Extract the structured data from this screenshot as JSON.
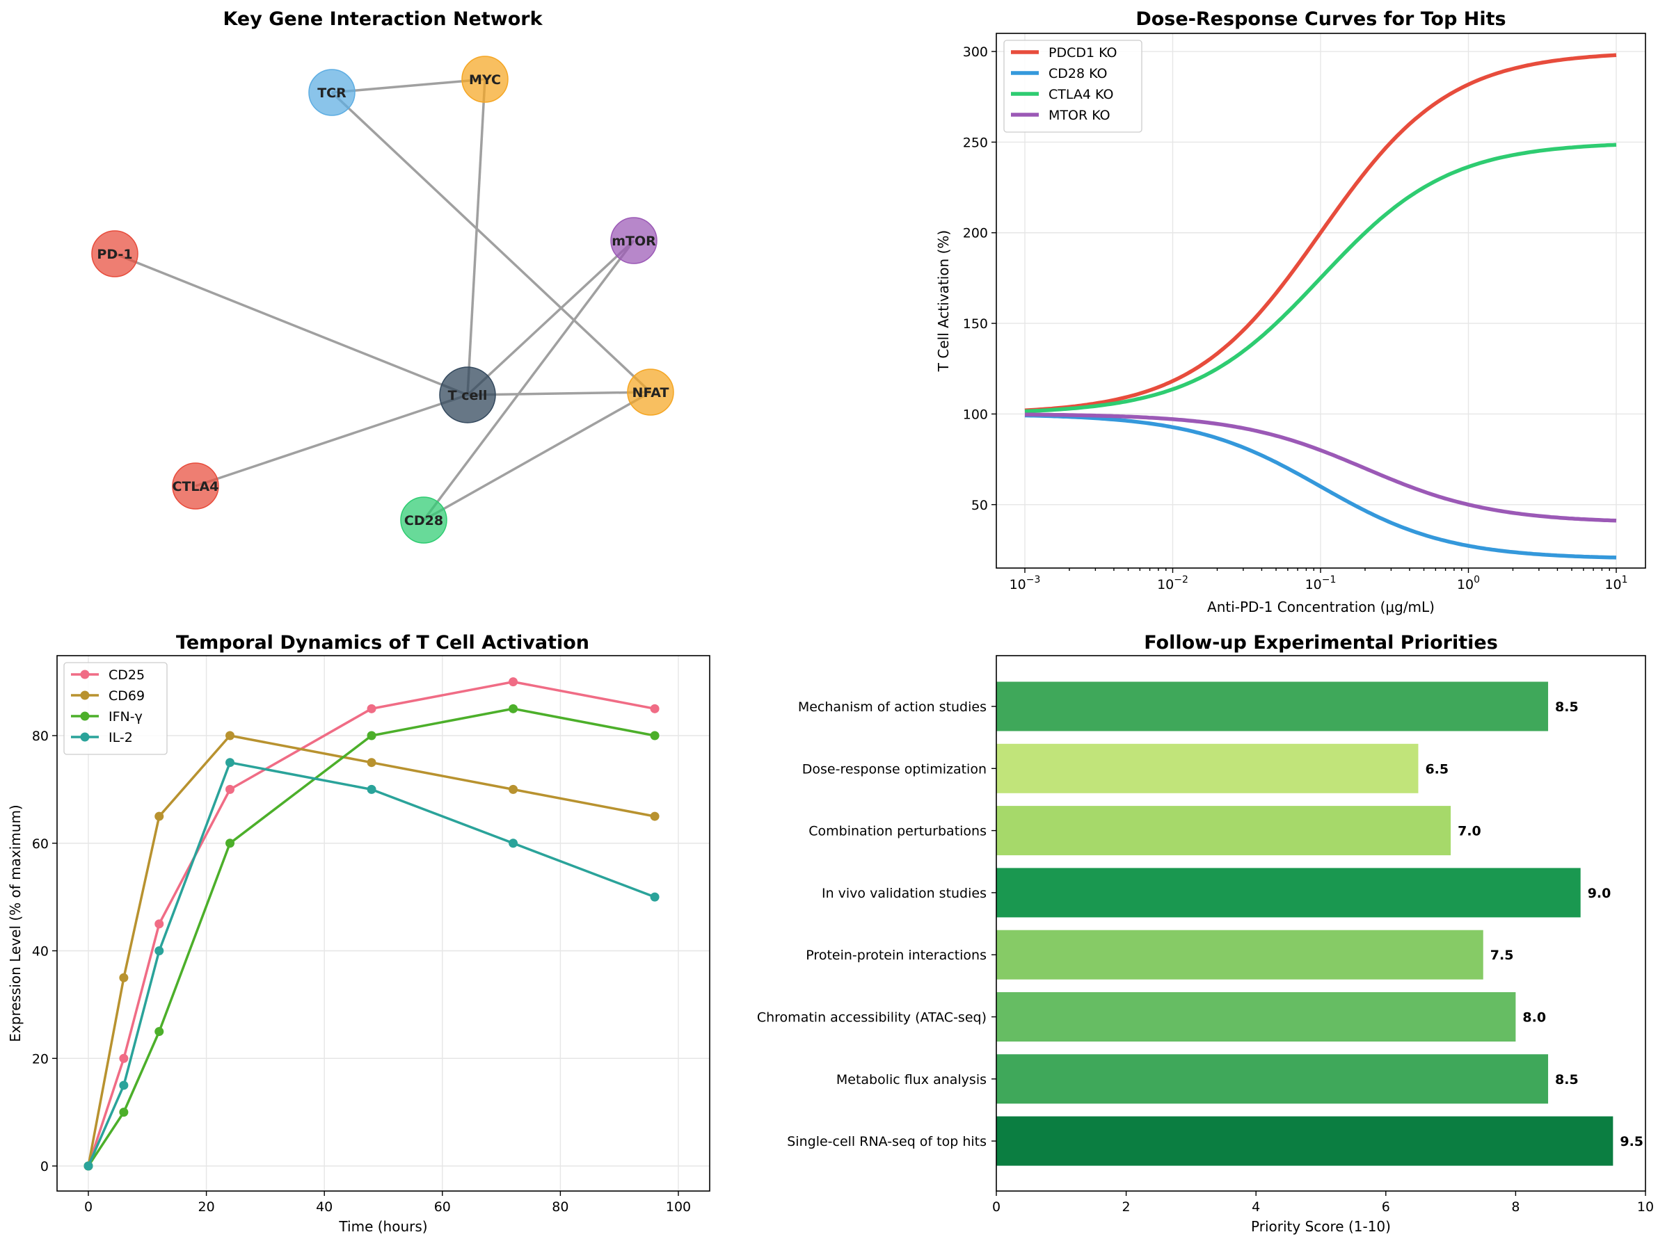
{
  "chart_data": [
    {
      "type": "network",
      "title": "Key Gene Interaction Network",
      "nodes": [
        {
          "id": "TCR",
          "color": "#5dade2",
          "central": false
        },
        {
          "id": "MYC",
          "color": "#f5a623",
          "central": false
        },
        {
          "id": "PD-1",
          "color": "#e74c3c",
          "central": false
        },
        {
          "id": "mTOR",
          "color": "#9b59b6",
          "central": false
        },
        {
          "id": "T cell",
          "color": "#34495e",
          "central": true
        },
        {
          "id": "NFAT",
          "color": "#f5a623",
          "central": false
        },
        {
          "id": "CTLA4",
          "color": "#e74c3c",
          "central": false
        },
        {
          "id": "CD28",
          "color": "#2ecc71",
          "central": false
        }
      ],
      "edges": [
        [
          "TCR",
          "MYC"
        ],
        [
          "MYC",
          "T cell"
        ],
        [
          "TCR",
          "NFAT"
        ],
        [
          "PD-1",
          "T cell"
        ],
        [
          "mTOR",
          "T cell"
        ],
        [
          "mTOR",
          "CD28"
        ],
        [
          "T cell",
          "NFAT"
        ],
        [
          "T cell",
          "CTLA4"
        ],
        [
          "NFAT",
          "CD28"
        ]
      ]
    },
    {
      "type": "line",
      "title": "Dose-Response Curves for Top Hits",
      "xlabel": "Anti-PD-1 Concentration (μg/mL)",
      "ylabel": "T Cell Activation (%)",
      "xscale": "log",
      "xlim": [
        0.001,
        10
      ],
      "ylim": [
        15,
        310
      ],
      "xticks": [
        0.001,
        0.01,
        0.1,
        1,
        10
      ],
      "xtick_exponents": [
        "−3",
        "−2",
        "−1",
        "0",
        "1"
      ],
      "yticks": [
        50,
        100,
        150,
        200,
        250,
        300
      ],
      "legend": "top-left",
      "grid": true,
      "series": [
        {
          "name": "PDCD1 KO",
          "color": "#e74c3c",
          "start": 100,
          "end": 300,
          "ec50": 0.1
        },
        {
          "name": "CD28 KO",
          "color": "#3498db",
          "start": 100,
          "end": 20,
          "ec50": 0.1
        },
        {
          "name": "CTLA4 KO",
          "color": "#2ecc71",
          "start": 100,
          "end": 250,
          "ec50": 0.1
        },
        {
          "name": "MTOR KO",
          "color": "#9b59b6",
          "start": 100,
          "end": 40,
          "ec50": 0.2
        }
      ]
    },
    {
      "type": "line",
      "title": "Temporal Dynamics of T Cell Activation",
      "xlabel": "Time (hours)",
      "ylabel": "Expression Level (% of maximum)",
      "xlim": [
        -5,
        101
      ],
      "ylim": [
        -4.5,
        94.5
      ],
      "xticks": [
        0,
        20,
        40,
        60,
        80,
        100
      ],
      "yticks": [
        0,
        20,
        40,
        60,
        80
      ],
      "legend": "top-left",
      "grid": true,
      "x": [
        0,
        6,
        12,
        24,
        48,
        72,
        96
      ],
      "series": [
        {
          "name": "CD25",
          "color": "#f06c85",
          "values": [
            0,
            20,
            45,
            70,
            85,
            90,
            85
          ]
        },
        {
          "name": "CD69",
          "color": "#b8922f",
          "values": [
            0,
            35,
            65,
            80,
            75,
            70,
            65
          ]
        },
        {
          "name": "IFN-γ",
          "color": "#4caf2a",
          "values": [
            0,
            10,
            25,
            60,
            80,
            85,
            80
          ]
        },
        {
          "name": "IL-2",
          "color": "#2aa39a",
          "values": [
            0,
            15,
            40,
            75,
            70,
            60,
            50
          ]
        }
      ]
    },
    {
      "type": "bar",
      "orientation": "horizontal",
      "title": "Follow-up Experimental Priorities",
      "xlabel": "Priority Score (1-10)",
      "xlim": [
        0,
        10
      ],
      "xticks": [
        0,
        2,
        4,
        6,
        8,
        10
      ],
      "categories": [
        "Mechanism of action studies",
        "Dose-response optimization",
        "Combination perturbations",
        "In vivo validation studies",
        "Protein-protein interactions",
        "Chromatin accessibility (ATAC-seq)",
        "Metabolic flux analysis",
        "Single-cell RNA-seq of top hits"
      ],
      "values": [
        8.5,
        6.5,
        7.0,
        9.0,
        7.5,
        8.0,
        8.5,
        9.5
      ],
      "value_labels": [
        "8.5",
        "6.5",
        "7.0",
        "9.0",
        "7.5",
        "8.0",
        "8.5",
        "9.5"
      ],
      "colors": [
        "#3fa85a",
        "#c1e47a",
        "#a6d96a",
        "#1a9850",
        "#86cb66",
        "#66bd63",
        "#3fa85a",
        "#0b7e41"
      ]
    }
  ]
}
